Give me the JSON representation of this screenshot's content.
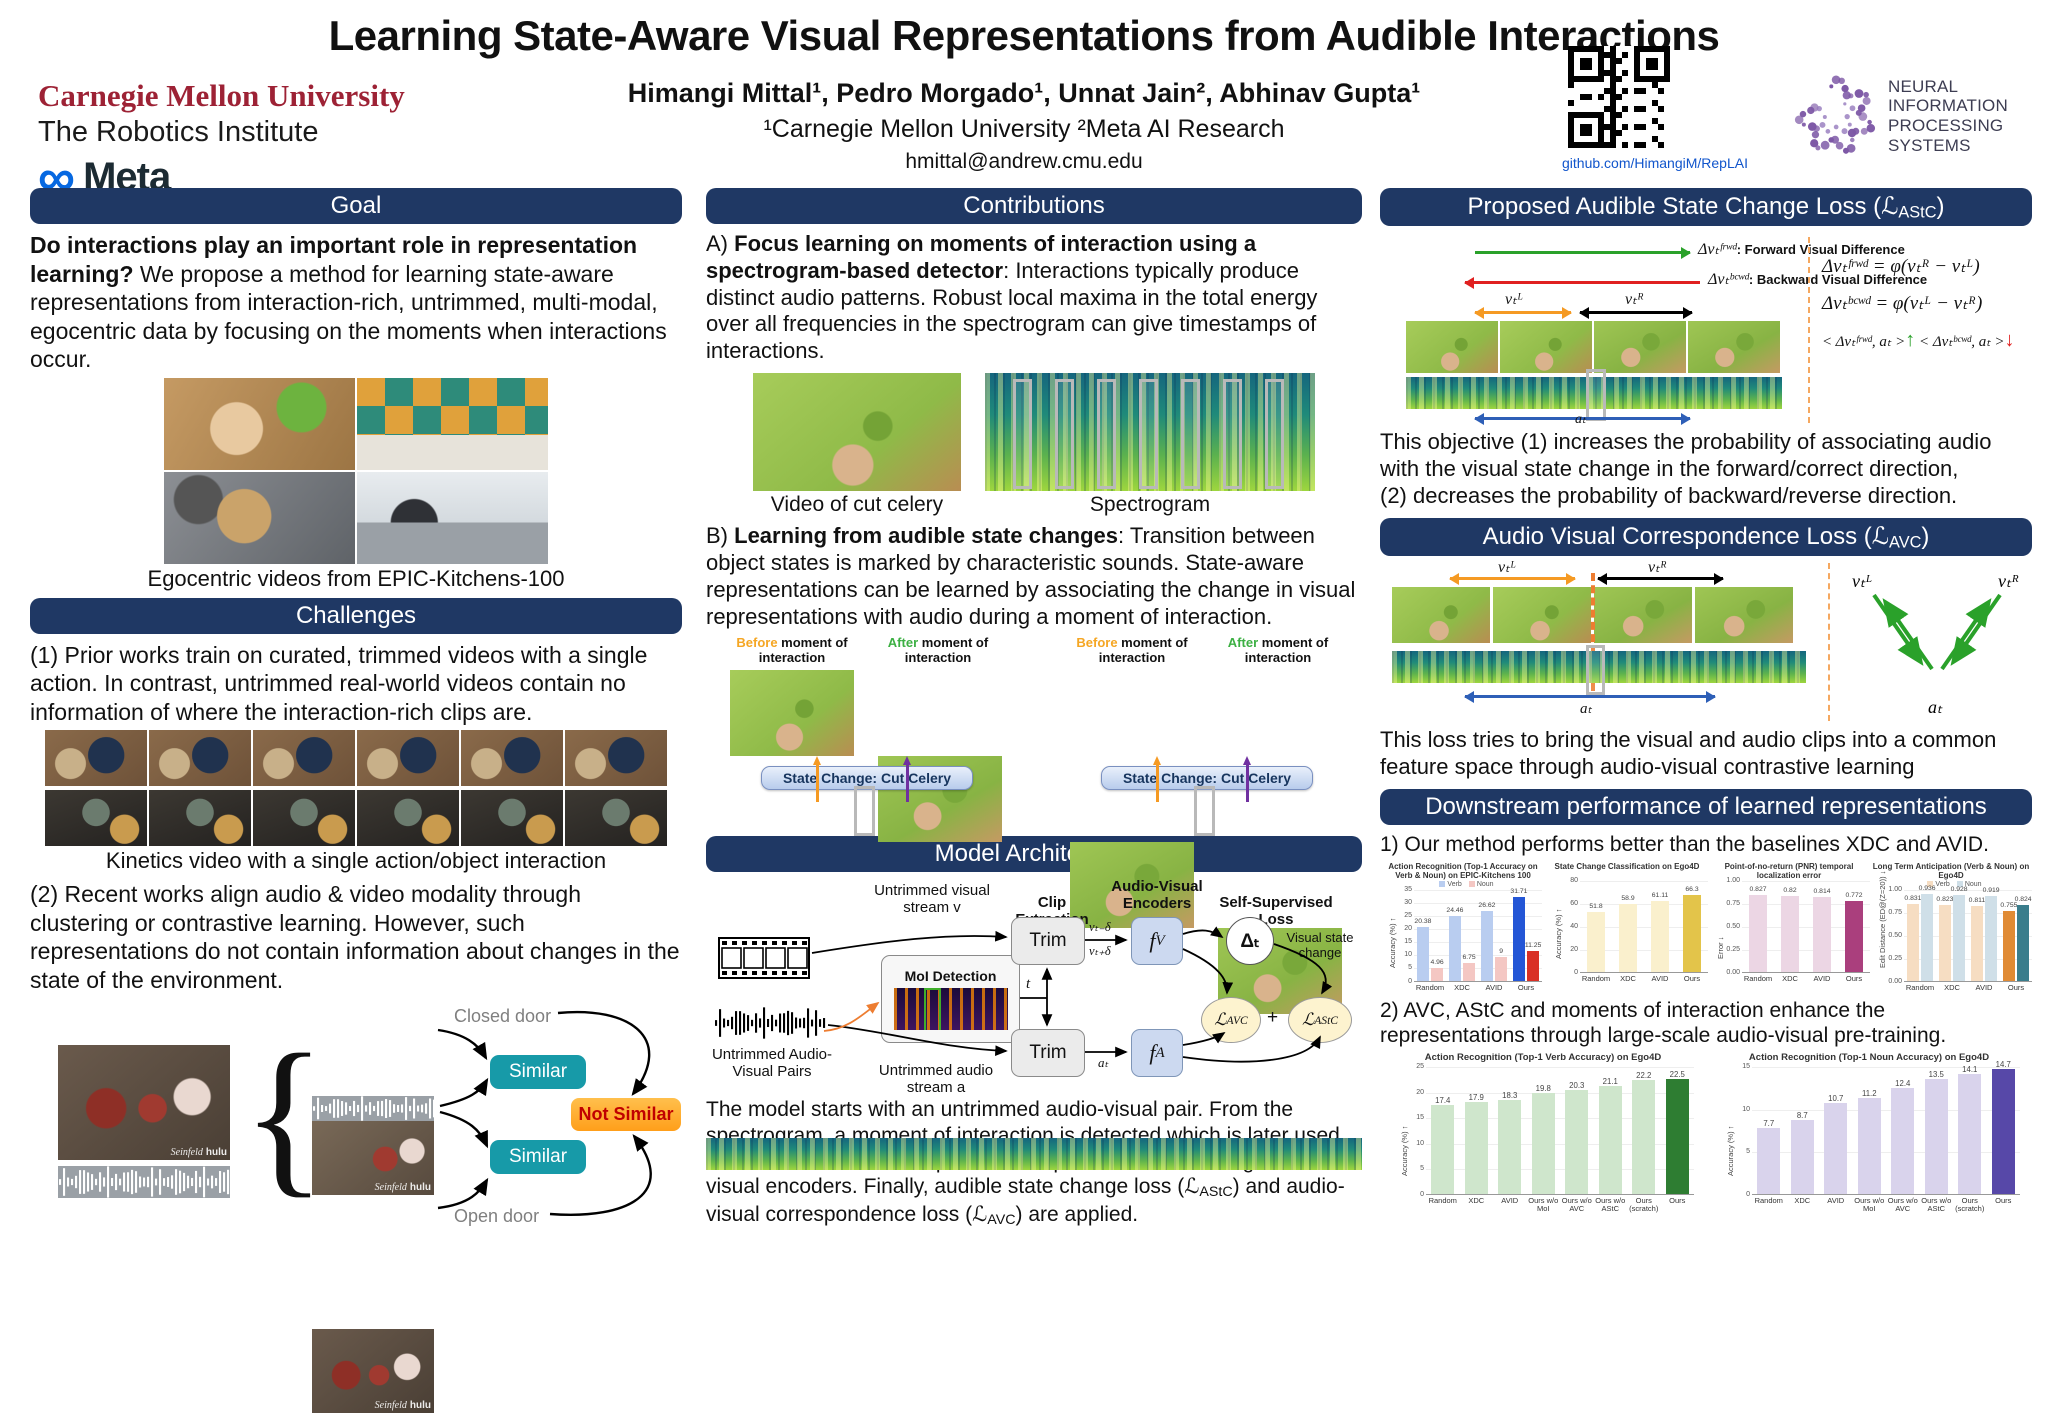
{
  "header": {
    "title": "Learning State-Aware Visual Representations from Audible Interactions",
    "cmu_wordmark": "Carnegie Mellon University",
    "robotics_institute": "The Robotics Institute",
    "meta_infinity": "∞",
    "meta_label": "Meta",
    "authors": "Himangi Mittal¹, Pedro Morgado¹, Unnat Jain², Abhinav Gupta¹",
    "affiliations": "¹Carnegie Mellon University ²Meta AI Research",
    "email": "hmittal@andrew.cmu.edu",
    "github": "github.com/HimangiM/RepLAI",
    "neurips_line1": "NEURAL INFORMATION",
    "neurips_line2": "PROCESSING SYSTEMS"
  },
  "icons": {
    "meta_logo": "infinity-glyph",
    "qr_code": "qr-grid-pattern",
    "neurips_logo": "purple-dot-swirl",
    "film_strip": "film-frames",
    "audio_waveform": "waveform-bars",
    "brace": "{"
  },
  "goal": {
    "header": "Goal",
    "question": "Do interactions play an important role in representation learning?",
    "body": " We propose a method for learning state-aware representations from interaction-rich, untrimmed, multi-modal, egocentric data by focusing on the moments when interactions occur.",
    "caption": "Egocentric videos from EPIC-Kitchens-100"
  },
  "challenges": {
    "header": "Challenges",
    "point1": "(1) Prior works train on curated, trimmed videos with a single action. In contrast, untrimmed real-world videos  contain no information of where the interaction-rich clips are.",
    "kinetics_caption": "Kinetics video with a single action/object interaction",
    "point2": "(2) Recent works align audio & video modality through clustering or contrastive learning. However, such representations do not contain information about changes in the state of the environment.",
    "diagram": {
      "closed_door": "Closed door",
      "open_door": "Open door",
      "similar1": "Similar",
      "similar2": "Similar",
      "not_similar": "Not Similar",
      "watermark_show": "Seinfeld",
      "watermark_net": "hulu"
    }
  },
  "contributions": {
    "header": "Contributions",
    "a_prefix": "A) ",
    "a_bold": "Focus learning on moments of interaction using a spectrogram-based detector",
    "a_rest": ": Interactions typically produce distinct audio patterns. Robust local maxima in the total energy over all frequencies in the spectrogram can give timestamps of interactions.",
    "caption_video": "Video of cut celery",
    "caption_spectrogram": "Spectrogram",
    "b_prefix": "B) ",
    "b_bold": "Learning from audible state changes",
    "b_rest": ": Transition between object states is marked by characteristic sounds. State-aware representations can be learned by associating the change in visual representations with audio during a moment of interaction.",
    "before_accent": "Before",
    "before_rest": " moment of interaction",
    "after_accent": "After",
    "after_rest": " moment of interaction",
    "state_change_badge": "State Change: Cut Celery"
  },
  "architecture": {
    "header": "Model Architecture",
    "untrimmed_visual": "Untrimmed visual stream v",
    "clip_extraction": "Clip Extraction",
    "av_encoders": "Audio-Visual Encoders",
    "self_supervised": "Self-Supervised Loss",
    "trim_top": "Trim",
    "trim_bottom": "Trim",
    "moi_label": "MoI Detection",
    "t_label": "t",
    "v_minus": "vₜ₋δ",
    "v_plus": "vₜ₊δ",
    "a_t": "aₜ",
    "f_sym": "f",
    "f_v_sub": "V",
    "f_a_sub": "A",
    "delta_t": "Δₜ",
    "visual_state_change": "Visual state change",
    "loss_sym": "ℒ",
    "avc_sub": "AVC",
    "astc_sub": "AStC",
    "plus": "+",
    "untrimmed_pairs": "Untrimmed Audio-Visual Pairs",
    "untrimmed_audio": "Untrimmed audio stream a",
    "desc1": "The model starts with an untrimmed audio-visual pair. From the spectrogram, a moment of interaction is detected which is later used to extract audio-visual clips. These clips are encoded using audio-visual encoders. Finally, audible state change loss (ℒ",
    "desc1_sub": "AStC",
    "desc2": ")  and audio-visual correspondence loss (ℒ",
    "desc2_sub": "AVC",
    "desc3": ") are applied."
  },
  "astc": {
    "header_pre": "Proposed Audible State Change Loss (ℒ",
    "header_sub": "AStC",
    "header_post": ")",
    "frwd_sym": "Δvₜᶠʳʷᵈ",
    "frwd_desc": ": Forward Visual Difference",
    "bcwd_sym": "Δvₜᵇᶜʷᵈ",
    "bcwd_desc": ": Backward Visual Difference",
    "vtl": "vₜᴸ",
    "vtr": "vₜᴿ",
    "at": "aₜ",
    "eq1": "Δvₜᶠʳʷᵈ = φ(vₜᴿ − vₜᴸ)",
    "eq2": "Δvₜᵇᶜʷᵈ = φ(vₜᴸ − vₜᴿ)",
    "eq3a": "< Δvₜᶠʳʷᵈ, aₜ >",
    "eq3_up": "↑",
    "eq3b": "< Δvₜᵇᶜʷᵈ, aₜ >",
    "eq3_down": "↓",
    "body1": "This objective (1) increases the probability of associating audio with the visual state change in the forward/correct direction,",
    "body2": "(2) decreases the probability of backward/reverse direction."
  },
  "avc": {
    "header_pre": "Audio Visual Correspondence Loss (ℒ",
    "header_sub": "AVC",
    "header_post": ")",
    "vtl": "vₜᴸ",
    "vtr": "vₜᴿ",
    "at": "aₜ",
    "v_vtl": "vₜᴸ",
    "v_vtr": "vₜᴿ",
    "v_at": "aₜ",
    "body": "This loss tries to bring the visual and audio clips into a common feature space through audio-visual contrastive learning"
  },
  "downstream": {
    "header": "Downstream performance of learned representations",
    "note1": "1) Our method performs better than the baselines XDC and AVID.",
    "note2": "2) AVC, AStC and moments of interaction enhance the representations through large-scale audio-visual pre-training."
  },
  "chart_data": [
    {
      "type": "bar",
      "title": "Action Recognition (Top-1 Accuracy on Verb & Noun) on EPIC-Kitchens 100",
      "categories": [
        "Random",
        "XDC",
        "AVID",
        "Ours"
      ],
      "series": [
        {
          "name": "Verb",
          "values": [
            20.38,
            24.46,
            26.62,
            31.71
          ]
        },
        {
          "name": "Noun",
          "values": [
            4.96,
            6.75,
            9,
            11.25
          ]
        }
      ],
      "ylabel": "Accuracy (%) ↑",
      "ylim": [
        0,
        35
      ],
      "yticks": [
        0,
        5,
        10,
        15,
        20,
        25,
        30,
        35
      ],
      "colors": {
        "Verb": "#b9cdf0",
        "Noun": "#f4c7c3",
        "Verb_ours": "#2456d6",
        "Noun_ours": "#d93025"
      },
      "legend_position": "top",
      "grid": true
    },
    {
      "type": "bar",
      "title": "State Change Classification on Ego4D",
      "categories": [
        "Random",
        "XDC",
        "AVID",
        "Ours"
      ],
      "values": [
        51.8,
        58.9,
        61.11,
        66.3
      ],
      "ylabel": "Accuracy (%) ↑",
      "ylim": [
        0,
        80
      ],
      "yticks": [
        0,
        20,
        40,
        60,
        80
      ],
      "colors": {
        "bar": "#faf0cd",
        "ours": "#e3c44a"
      },
      "grid": true
    },
    {
      "type": "bar",
      "title": "Point-of-no-return (PNR) temporal localization error",
      "categories": [
        "Random",
        "XDC",
        "AVID",
        "Ours"
      ],
      "values": [
        0.827,
        0.82,
        0.814,
        0.772
      ],
      "ylabel": "Error ↓",
      "ylim": [
        0,
        1.0
      ],
      "yticks": [
        0.0,
        0.25,
        0.5,
        0.75,
        1.0
      ],
      "colors": {
        "bar": "#ecd6e4",
        "ours": "#aa3f7d"
      },
      "grid": true
    },
    {
      "type": "bar",
      "title": "Long Term Anticipation (Verb & Noun) on Ego4D",
      "categories": [
        "Random",
        "XDC",
        "AVID",
        "Ours"
      ],
      "series": [
        {
          "name": "Verb",
          "values": [
            0.831,
            0.823,
            0.811,
            0.755
          ]
        },
        {
          "name": "Noun",
          "values": [
            0.936,
            0.928,
            0.919,
            0.824
          ]
        }
      ],
      "ylabel": "Edit Distance (ED@(Z=20)) ↓",
      "ylim": [
        0,
        1.0
      ],
      "yticks": [
        0.0,
        0.25,
        0.5,
        0.75,
        1.0
      ],
      "colors": {
        "Verb": "#f6ddc2",
        "Noun": "#cfdfe8",
        "Verb_ours": "#e08b35",
        "Noun_ours": "#3a7d8c"
      },
      "legend_position": "top",
      "grid": true
    },
    {
      "type": "bar",
      "title": "Action Recognition (Top-1 Verb Accuracy) on Ego4D",
      "categories": [
        "Random",
        "XDC",
        "AVID",
        "Ours w/o MoI",
        "Ours w/o AVC",
        "Ours w/o AStC",
        "Ours (scratch)",
        "Ours"
      ],
      "values": [
        17.4,
        17.9,
        18.3,
        19.8,
        20.3,
        21.1,
        22.2,
        22.5
      ],
      "ylabel": "Accuracy (%) ↑",
      "ylim": [
        0,
        25
      ],
      "yticks": [
        0,
        5,
        10,
        15,
        20,
        25
      ],
      "colors": {
        "bar": "#cfe6cc",
        "ours": "#2e7d32"
      },
      "grid": true
    },
    {
      "type": "bar",
      "title": "Action Recognition (Top-1 Noun Accuracy) on Ego4D",
      "categories": [
        "Random",
        "XDC",
        "AVID",
        "Ours w/o MoI",
        "Ours w/o AVC",
        "Ours w/o AStC",
        "Ours (scratch)",
        "Ours"
      ],
      "values": [
        7.7,
        8.7,
        10.7,
        11.2,
        12.4,
        13.5,
        14.1,
        14.7
      ],
      "ylabel": "Accuracy (%) ↑",
      "ylim": [
        0,
        15
      ],
      "yticks": [
        0,
        5,
        10,
        15
      ],
      "colors": {
        "bar": "#d9d3ec",
        "ours": "#5748a8"
      },
      "grid": true
    }
  ]
}
